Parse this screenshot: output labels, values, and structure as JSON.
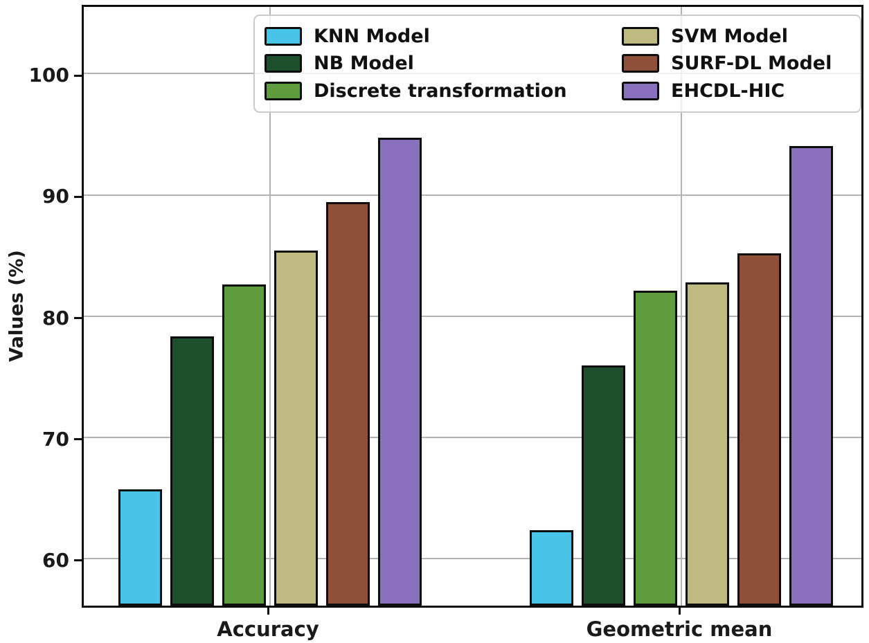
{
  "chart_data": {
    "type": "bar",
    "title": "",
    "xlabel": "",
    "ylabel": "Values (%)",
    "categories": [
      "Accuracy",
      "Geometric mean"
    ],
    "series": [
      {
        "name": "KNN Model",
        "color": "#47C4E8",
        "values": [
          65.7,
          62.3
        ]
      },
      {
        "name": "NB Model",
        "color": "#1E4F2C",
        "values": [
          78.3,
          75.9
        ]
      },
      {
        "name": "Discrete transformation",
        "color": "#5E9C3D",
        "values": [
          82.6,
          82.1
        ]
      },
      {
        "name": "SVM Model",
        "color": "#BFBA80",
        "values": [
          85.4,
          82.8
        ]
      },
      {
        "name": "SURF-DL Model",
        "color": "#8E5039",
        "values": [
          89.4,
          85.2
        ]
      },
      {
        "name": "EHCDL-HIC",
        "color": "#8A71BE",
        "values": [
          94.7,
          94.0
        ]
      }
    ],
    "yticks": [
      60,
      70,
      80,
      90,
      100
    ],
    "ylim": [
      56.1,
      105.85
    ],
    "grid": true,
    "bar_edge_color": "#0d0d0d",
    "legend_position": "upper center, 2 columns",
    "legend_columns": [
      [
        0,
        1,
        2
      ],
      [
        3,
        4,
        5
      ]
    ]
  }
}
